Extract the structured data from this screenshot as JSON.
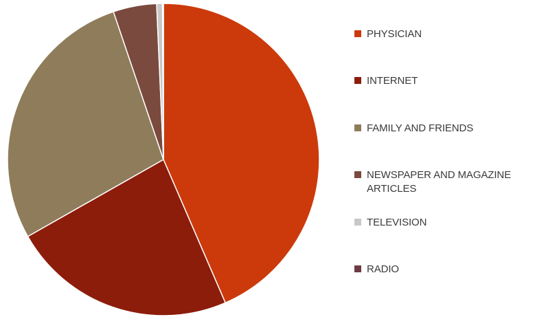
{
  "chart_data": {
    "type": "pie",
    "title": "",
    "start_angle_deg": 0,
    "direction": "clockwise",
    "legend_position": "right",
    "slices": [
      {
        "label": "PHYSICIAN",
        "value": 43.5,
        "color": "#CC3A0C"
      },
      {
        "label": "INTERNET",
        "value": 23.3,
        "color": "#8C1D0B"
      },
      {
        "label": "FAMILY AND FRIENDS",
        "value": 28.0,
        "color": "#8F7C5B"
      },
      {
        "label": "NEWSPAPER AND MAGAZINE ARTICLES",
        "value": 4.5,
        "color": "#7A4A3E"
      },
      {
        "label": "TELEVISION",
        "value": 0.6,
        "color": "#C8C8C8"
      },
      {
        "label": "RADIO",
        "value": 0.1,
        "color": "#6E3A43"
      }
    ]
  }
}
